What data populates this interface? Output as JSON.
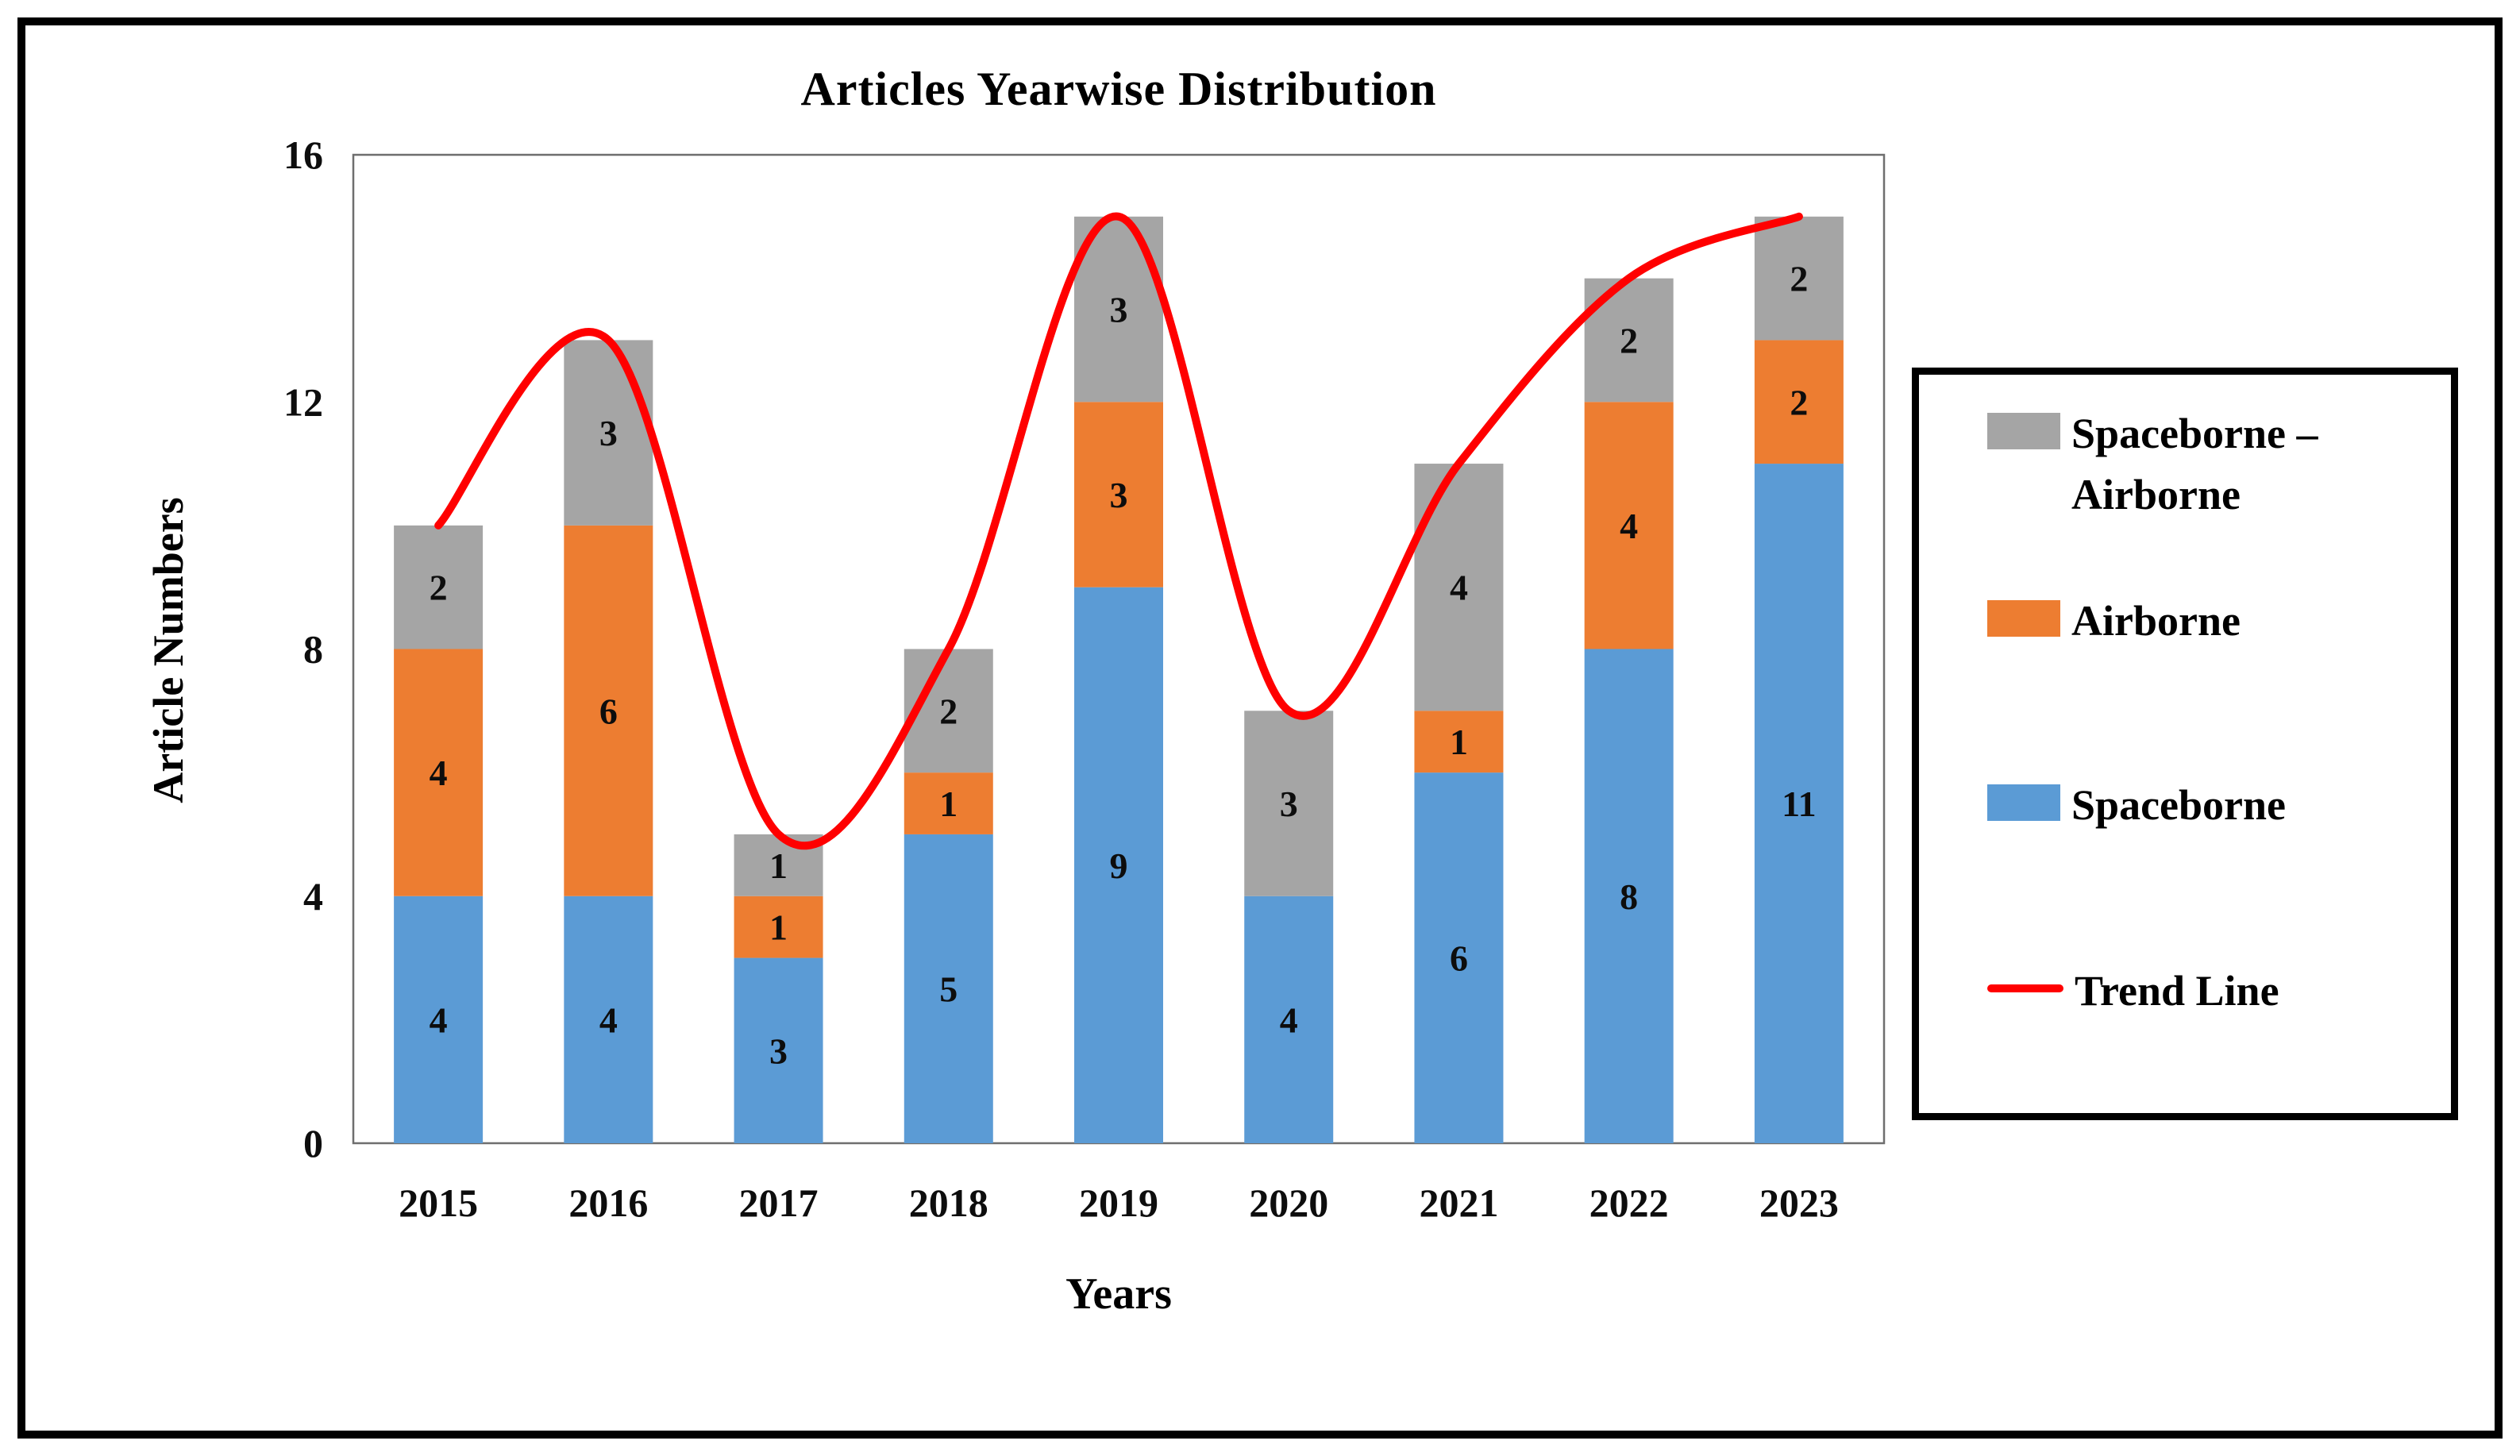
{
  "figure": {
    "title": "Articles Yearwise Distribution"
  },
  "chart_data": {
    "type": "bar",
    "stacked": true,
    "title": "Articles Yearwise Distribution",
    "xlabel": "Years",
    "ylabel": "Article Numbers",
    "categories": [
      "2015",
      "2016",
      "2017",
      "2018",
      "2019",
      "2020",
      "2021",
      "2022",
      "2023"
    ],
    "series": [
      {
        "name": "Spaceborne",
        "color": "#5B9BD5",
        "values": [
          4,
          4,
          3,
          5,
          9,
          4,
          6,
          8,
          11
        ]
      },
      {
        "name": "Airborne",
        "color": "#ED7D31",
        "values": [
          4,
          6,
          1,
          1,
          3,
          0,
          1,
          4,
          2
        ]
      },
      {
        "name": "Spaceborne – Airborne",
        "color": "#A5A5A5",
        "values": [
          2,
          3,
          1,
          2,
          3,
          3,
          4,
          2,
          2
        ]
      }
    ],
    "trend": {
      "name": "Trend Line",
      "color": "#FF0000",
      "smooth": true,
      "values": [
        10,
        13,
        5,
        8,
        15,
        7,
        11,
        14,
        15
      ]
    },
    "totals": [
      10,
      13,
      5,
      8,
      15,
      7,
      11,
      14,
      15
    ],
    "ylim": [
      0,
      16
    ],
    "yticks": [
      0,
      4,
      8,
      12,
      16
    ],
    "grid": false,
    "legend_position": "right",
    "legend": {
      "entries": [
        {
          "kind": "patch",
          "swatch": "#A5A5A5",
          "lines": [
            "Spaceborne –",
            "Airborne"
          ]
        },
        {
          "kind": "patch",
          "swatch": "#ED7D31",
          "lines": [
            "Airborne"
          ]
        },
        {
          "kind": "patch",
          "swatch": "#5B9BD5",
          "lines": [
            "Spaceborne"
          ]
        },
        {
          "kind": "line",
          "swatch": "#FF0000",
          "lines": [
            "Trend Line"
          ]
        }
      ]
    },
    "plot_border_color": "#6e6e6e",
    "label_color": "#0d0d0d"
  }
}
